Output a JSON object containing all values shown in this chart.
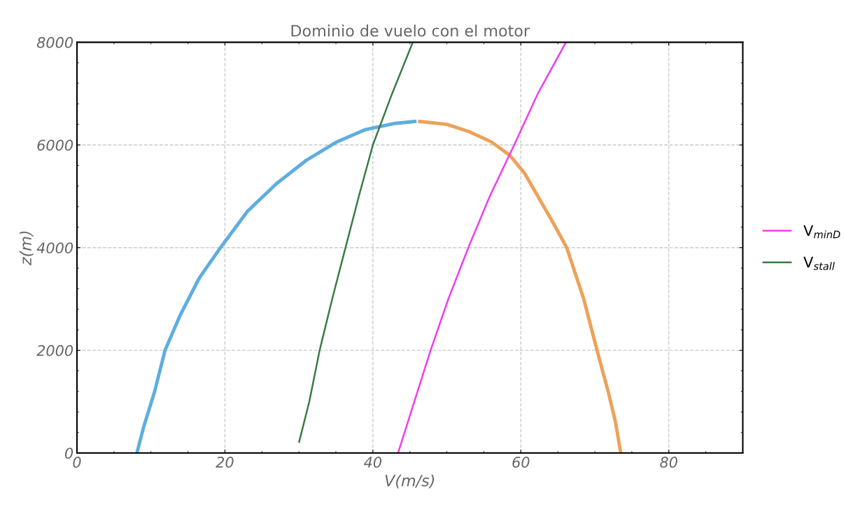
{
  "chart_data": {
    "type": "line",
    "title": "Dominio de vuelo con el motor",
    "xlabel": "V(m/s)",
    "ylabel": "z(m)",
    "xlim": [
      0,
      90
    ],
    "ylim": [
      0,
      8000
    ],
    "xticks": [
      0,
      20,
      40,
      60,
      80
    ],
    "yticks": [
      0,
      2000,
      4000,
      6000,
      8000
    ],
    "grid": true,
    "legend": "right",
    "marker": "none",
    "line_style": "solid",
    "series": [
      {
        "color": "#5eade0",
        "x": [
          8.1,
          9,
          10.5,
          11.9,
          14,
          16.5,
          19.4,
          23,
          27,
          31,
          35,
          39,
          43,
          45.9
        ],
        "values": [
          0,
          500,
          1200,
          2000,
          2700,
          3400,
          4000,
          4700,
          5250,
          5700,
          6050,
          6300,
          6420,
          6460
        ]
      },
      {
        "color": "#eea159",
        "x": [
          46.1,
          50,
          53,
          56,
          58.5,
          60.5,
          62.3,
          64.3,
          66.2,
          68.5,
          70.3,
          71.8,
          72.8,
          73.5
        ],
        "values": [
          6460,
          6400,
          6260,
          6060,
          5800,
          5450,
          5000,
          4500,
          4000,
          3000,
          2000,
          1200,
          600,
          0
        ]
      },
      {
        "name": "V$_{minD}$",
        "color": "#f03cf0",
        "x": [
          43.4,
          45.6,
          47.8,
          50.2,
          52.9,
          55.8,
          59.1,
          62.3,
          66.1
        ],
        "values": [
          0,
          1000,
          2000,
          3000,
          4000,
          5000,
          6000,
          7000,
          8000
        ]
      },
      {
        "name": "V$_{stall}$",
        "color": "#3a7d44",
        "x": [
          30,
          31.4,
          32.8,
          34.5,
          36.3,
          38.1,
          40,
          42.6,
          45.4
        ],
        "values": [
          200,
          1000,
          2000,
          3000,
          4000,
          5000,
          6000,
          7000,
          8000
        ]
      }
    ]
  }
}
